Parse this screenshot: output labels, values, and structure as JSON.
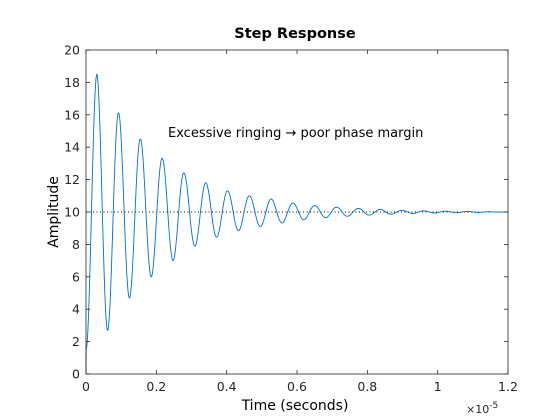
{
  "chart_data": {
    "type": "line",
    "title": "Step Response",
    "xlabel": "Time (seconds)",
    "ylabel": "Amplitude",
    "x_exponent_label": "×10",
    "x_exponent_power": "-5",
    "x_scale_factor": 1e-05,
    "xlim": [
      0,
      1.2
    ],
    "ylim": [
      0,
      20
    ],
    "xticks": [
      0,
      0.2,
      0.4,
      0.6,
      0.8,
      1,
      1.2
    ],
    "xtick_labels": [
      "0",
      "0.2",
      "0.4",
      "0.6",
      "0.8",
      "1",
      "1.2"
    ],
    "yticks": [
      0,
      2,
      4,
      6,
      8,
      10,
      12,
      14,
      16,
      18,
      20
    ],
    "ytick_labels": [
      "0",
      "2",
      "4",
      "6",
      "8",
      "10",
      "12",
      "14",
      "16",
      "18",
      "20"
    ],
    "grid": false,
    "annotation": "Excessive ringing  →  poor phase margin",
    "reference_line": {
      "y": 10,
      "style": "dotted"
    },
    "series": [
      {
        "color": "#0072BD",
        "final_value": 10,
        "oscillation_period": 0.062,
        "peaks": [
          {
            "x": 0.031,
            "y": 18.5
          },
          {
            "x": 0.062,
            "y": 2.7
          },
          {
            "x": 0.093,
            "y": 16.1
          },
          {
            "x": 0.124,
            "y": 4.7
          },
          {
            "x": 0.155,
            "y": 14.5
          },
          {
            "x": 0.186,
            "y": 6.0
          },
          {
            "x": 0.217,
            "y": 13.3
          },
          {
            "x": 0.248,
            "y": 7.0
          },
          {
            "x": 0.279,
            "y": 12.4
          },
          {
            "x": 0.341,
            "y": 11.8
          },
          {
            "x": 0.403,
            "y": 11.3
          },
          {
            "x": 0.465,
            "y": 11.0
          },
          {
            "x": 0.527,
            "y": 10.8
          },
          {
            "x": 0.589,
            "y": 10.55
          },
          {
            "x": 0.651,
            "y": 10.4
          },
          {
            "x": 0.713,
            "y": 10.3
          },
          {
            "x": 0.775,
            "y": 10.22
          },
          {
            "x": 0.9,
            "y": 10.1
          },
          {
            "x": 1.0,
            "y": 10.06
          },
          {
            "x": 1.2,
            "y": 10.0
          }
        ]
      }
    ]
  }
}
